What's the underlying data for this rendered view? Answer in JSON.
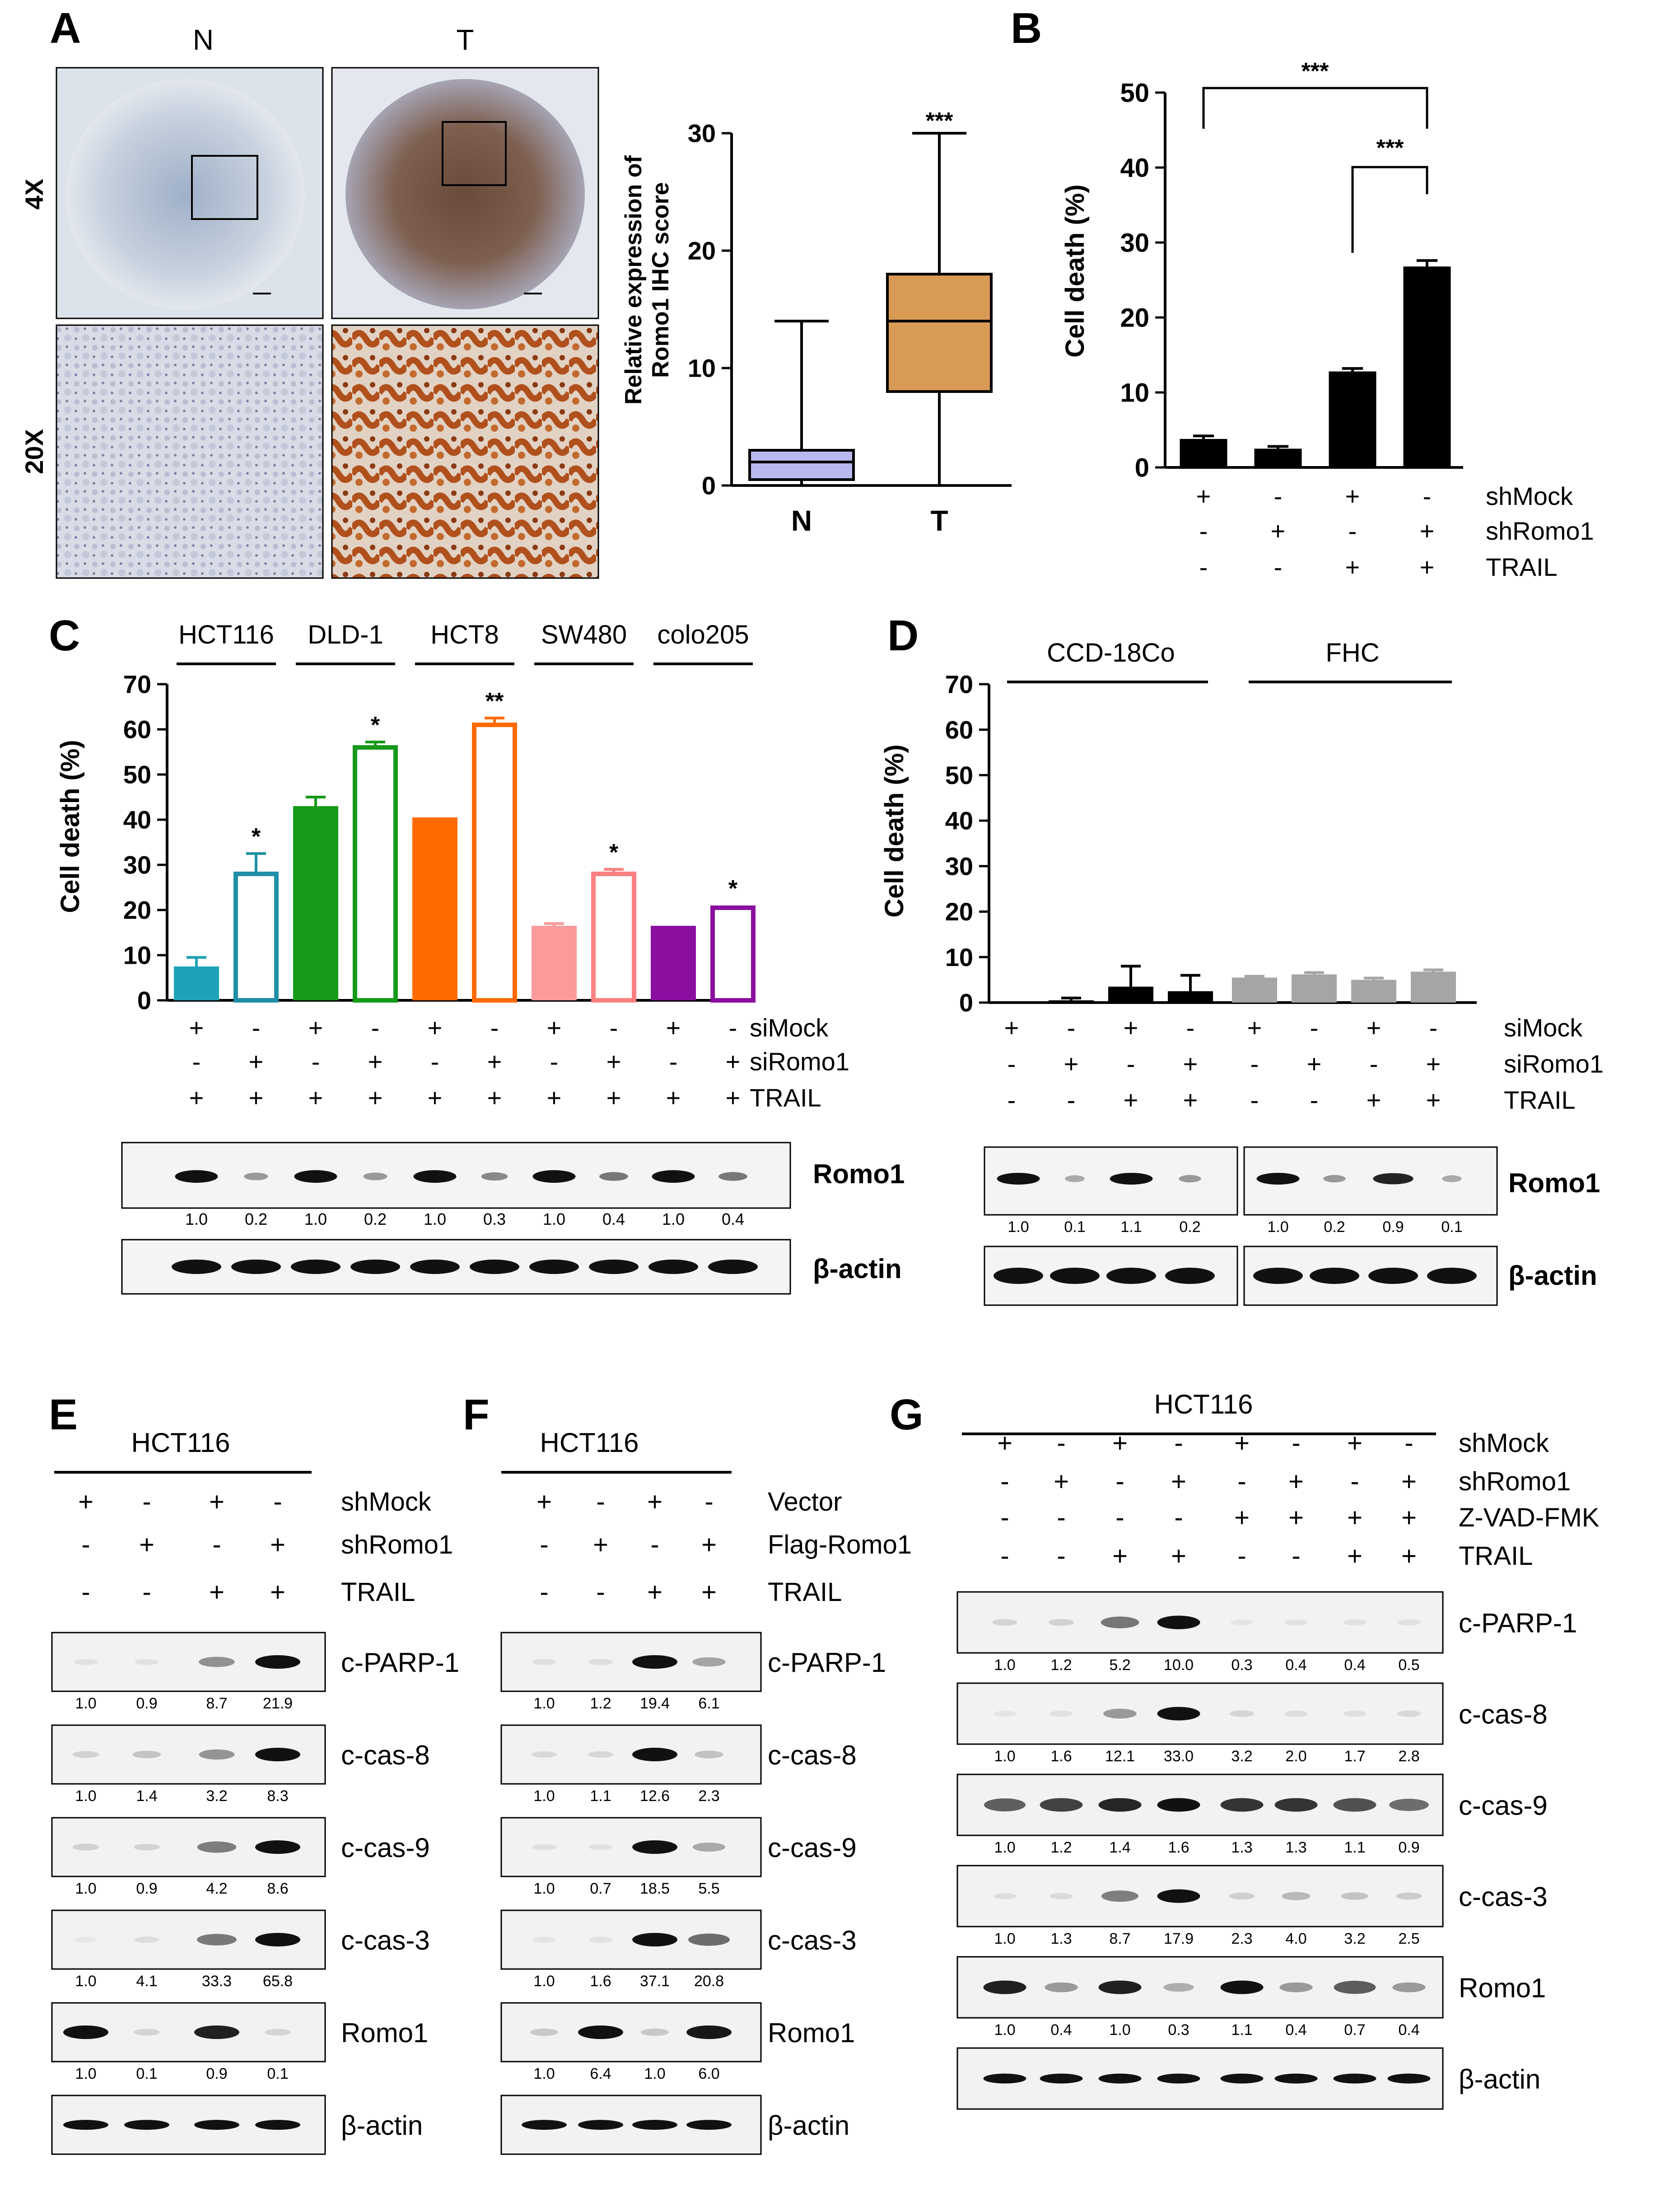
{
  "panels": {
    "A": "A",
    "B": "B",
    "C": "C",
    "D": "D",
    "E": "E",
    "F": "F",
    "G": "G"
  },
  "panelA": {
    "col_labels": [
      "N",
      "T"
    ],
    "row_labels": [
      "4X",
      "20X"
    ],
    "box": {
      "ylabel_line1": "Relative expression of",
      "ylabel_line2": "Romo1 IHC score",
      "yticks": [
        "0",
        "10",
        "20",
        "30"
      ],
      "categories": [
        "N",
        "T"
      ],
      "significance": "***",
      "colors": {
        "N": "#b9b9f0",
        "T": "#d99a55"
      }
    }
  },
  "panelB": {
    "ylabel": "Cell death (%)",
    "yticks": [
      "0",
      "10",
      "20",
      "30",
      "40",
      "50"
    ],
    "brackets": [
      "***",
      "***"
    ],
    "row_labels": [
      "shMock",
      "shRomo1",
      "TRAIL"
    ],
    "rows": [
      [
        "+",
        "-",
        "+",
        "-"
      ],
      [
        "-",
        "+",
        "-",
        "+"
      ],
      [
        "-",
        "-",
        "+",
        "+"
      ]
    ]
  },
  "panelC": {
    "ylabel": "Cell death (%)",
    "yticks": [
      "0",
      "10",
      "20",
      "30",
      "40",
      "50",
      "60",
      "70"
    ],
    "groups": [
      "HCT116",
      "DLD-1",
      "HCT8",
      "SW480",
      "colo205"
    ],
    "stars": [
      "*",
      "*",
      "**",
      "*",
      "*"
    ],
    "row_labels": [
      "siMock",
      "siRomo1",
      "TRAIL"
    ],
    "rows": [
      [
        "+",
        "-",
        "+",
        "-",
        "+",
        "-",
        "+",
        "-",
        "+",
        "-"
      ],
      [
        "-",
        "+",
        "-",
        "+",
        "-",
        "+",
        "-",
        "+",
        "-",
        "+"
      ],
      [
        "+",
        "+",
        "+",
        "+",
        "+",
        "+",
        "+",
        "+",
        "+",
        "+"
      ]
    ],
    "blot_labels": [
      "Romo1",
      "β-actin"
    ],
    "romo1_quant": [
      "1.0",
      "0.2",
      "1.0",
      "0.2",
      "1.0",
      "0.3",
      "1.0",
      "0.4",
      "1.0",
      "0.4"
    ]
  },
  "panelD": {
    "ylabel": "Cell death (%)",
    "yticks": [
      "0",
      "10",
      "20",
      "30",
      "40",
      "50",
      "60",
      "70"
    ],
    "groups": [
      "CCD-18Co",
      "FHC"
    ],
    "row_labels": [
      "siMock",
      "siRomo1",
      "TRAIL"
    ],
    "rows": [
      [
        "+",
        "-",
        "+",
        "-",
        "+",
        "-",
        "+",
        "-"
      ],
      [
        "-",
        "+",
        "-",
        "+",
        "-",
        "+",
        "-",
        "+"
      ],
      [
        "-",
        "-",
        "+",
        "+",
        "-",
        "-",
        "+",
        "+"
      ]
    ],
    "blot_labels": [
      "Romo1",
      "β-actin"
    ],
    "romo1_quant": [
      "1.0",
      "0.1",
      "1.1",
      "0.2",
      "1.0",
      "0.2",
      "0.9",
      "0.1"
    ]
  },
  "panelE": {
    "cell": "HCT116",
    "row_labels": [
      "shMock",
      "shRomo1",
      "TRAIL"
    ],
    "rows": [
      [
        "+",
        "-",
        "+",
        "-"
      ],
      [
        "-",
        "+",
        "-",
        "+"
      ],
      [
        "-",
        "-",
        "+",
        "+"
      ]
    ],
    "blots": [
      {
        "label": "c-PARP-1",
        "quant": [
          "1.0",
          "0.9",
          "8.7",
          "21.9"
        ]
      },
      {
        "label": "c-cas-8",
        "quant": [
          "1.0",
          "1.4",
          "3.2",
          "8.3"
        ]
      },
      {
        "label": "c-cas-9",
        "quant": [
          "1.0",
          "0.9",
          "4.2",
          "8.6"
        ]
      },
      {
        "label": "c-cas-3",
        "quant": [
          "1.0",
          "4.1",
          "33.3",
          "65.8"
        ]
      },
      {
        "label": "Romo1",
        "quant": [
          "1.0",
          "0.1",
          "0.9",
          "0.1"
        ]
      },
      {
        "label": "β-actin",
        "quant": []
      }
    ]
  },
  "panelF": {
    "cell": "HCT116",
    "row_labels": [
      "Vector",
      "Flag-Romo1",
      "TRAIL"
    ],
    "rows": [
      [
        "+",
        "-",
        "+",
        "-"
      ],
      [
        "-",
        "+",
        "-",
        "+"
      ],
      [
        "-",
        "-",
        "+",
        "+"
      ]
    ],
    "blots": [
      {
        "label": "c-PARP-1",
        "quant": [
          "1.0",
          "1.2",
          "19.4",
          "6.1"
        ]
      },
      {
        "label": "c-cas-8",
        "quant": [
          "1.0",
          "1.1",
          "12.6",
          "2.3"
        ]
      },
      {
        "label": "c-cas-9",
        "quant": [
          "1.0",
          "0.7",
          "18.5",
          "5.5"
        ]
      },
      {
        "label": "c-cas-3",
        "quant": [
          "1.0",
          "1.6",
          "37.1",
          "20.8"
        ]
      },
      {
        "label": "Romo1",
        "quant": [
          "1.0",
          "6.4",
          "1.0",
          "6.0"
        ]
      },
      {
        "label": "β-actin",
        "quant": []
      }
    ]
  },
  "panelG": {
    "cell": "HCT116",
    "row_labels": [
      "shMock",
      "shRomo1",
      "Z-VAD-FMK",
      "TRAIL"
    ],
    "rows": [
      [
        "+",
        "-",
        "+",
        "-",
        "+",
        "-",
        "+",
        "-"
      ],
      [
        "-",
        "+",
        "-",
        "+",
        "-",
        "+",
        "-",
        "+"
      ],
      [
        "-",
        "-",
        "-",
        "-",
        "+",
        "+",
        "+",
        "+"
      ],
      [
        "-",
        "-",
        "+",
        "+",
        "-",
        "-",
        "+",
        "+"
      ]
    ],
    "blots": [
      {
        "label": "c-PARP-1",
        "quant": [
          "1.0",
          "1.2",
          "5.2",
          "10.0",
          "0.3",
          "0.4",
          "0.4",
          "0.5"
        ]
      },
      {
        "label": "c-cas-8",
        "quant": [
          "1.0",
          "1.6",
          "12.1",
          "33.0",
          "3.2",
          "2.0",
          "1.7",
          "2.8"
        ]
      },
      {
        "label": "c-cas-9",
        "quant": [
          "1.0",
          "1.2",
          "1.4",
          "1.6",
          "1.3",
          "1.3",
          "1.1",
          "0.9"
        ]
      },
      {
        "label": "c-cas-3",
        "quant": [
          "1.0",
          "1.3",
          "8.7",
          "17.9",
          "2.3",
          "4.0",
          "3.2",
          "2.5"
        ]
      },
      {
        "label": "Romo1",
        "quant": [
          "1.0",
          "0.4",
          "1.0",
          "0.3",
          "1.1",
          "0.4",
          "0.7",
          "0.4"
        ]
      },
      {
        "label": "β-actin",
        "quant": []
      }
    ]
  },
  "chart_data": [
    {
      "id": "A-box",
      "type": "box",
      "ylabel": "Relative expression of Romo1 IHC score",
      "ylim": [
        0,
        30
      ],
      "categories": [
        "N",
        "T"
      ],
      "series": [
        {
          "name": "N",
          "min": 0,
          "q1": 0.5,
          "median": 2,
          "q3": 3,
          "max": 14
        },
        {
          "name": "T",
          "min": 0,
          "q1": 8,
          "median": 14,
          "q3": 18,
          "max": 30
        }
      ]
    },
    {
      "id": "B",
      "type": "bar",
      "ylabel": "Cell death (%)",
      "ylim": [
        0,
        50
      ],
      "categories": [
        "1",
        "2",
        "3",
        "4"
      ],
      "values": [
        3.8,
        2.5,
        12.8,
        26.8
      ],
      "errors": [
        0.4,
        0.3,
        0.4,
        0.8
      ],
      "colors": [
        "#000000",
        "#000000",
        "#000000",
        "#000000"
      ],
      "fill": [
        true,
        true,
        true,
        true
      ]
    },
    {
      "id": "C",
      "type": "bar",
      "ylabel": "Cell death (%)",
      "ylim": [
        0,
        70
      ],
      "categories": [
        "1",
        "2",
        "3",
        "4",
        "5",
        "6",
        "7",
        "8",
        "9",
        "10"
      ],
      "values": [
        7.5,
        28.5,
        43,
        56.5,
        40.5,
        61.5,
        16.5,
        28.5,
        16.5,
        21
      ],
      "errors": [
        2,
        4,
        2,
        0.7,
        0,
        1,
        0.5,
        0.5,
        0,
        0
      ],
      "colors": [
        "#1fa2b8",
        "#1f8fa8",
        "#159a1a",
        "#159a1a",
        "#ff6a00",
        "#ff6a00",
        "#fb9a9a",
        "#fb8080",
        "#8a0fa0",
        "#8a0fa0"
      ],
      "fill": [
        true,
        false,
        true,
        false,
        true,
        false,
        true,
        false,
        true,
        false
      ]
    },
    {
      "id": "D",
      "type": "bar",
      "ylabel": "Cell death (%)",
      "ylim": [
        0,
        70
      ],
      "categories": [
        "1",
        "2",
        "3",
        "4",
        "5",
        "6",
        "7",
        "8"
      ],
      "values": [
        0,
        0.5,
        3.5,
        2.5,
        5.5,
        6.2,
        5,
        6.8
      ],
      "errors": [
        0,
        0.5,
        4.5,
        3.5,
        0.3,
        0.4,
        0.4,
        0.4
      ],
      "colors": [
        "#000000",
        "#000000",
        "#000000",
        "#000000",
        "#a5a5a5",
        "#a5a5a5",
        "#a5a5a5",
        "#a5a5a5"
      ],
      "fill": [
        true,
        true,
        true,
        true,
        true,
        true,
        true,
        true
      ]
    }
  ]
}
